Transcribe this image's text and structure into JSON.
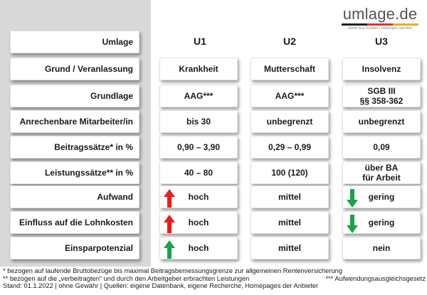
{
  "logo": {
    "text": "umlage.de",
    "tagline": "damit aus Kosten Leistungen werden",
    "bar_colors": [
      "#222222",
      "#e03030",
      "#e8b400"
    ]
  },
  "columns": [
    "U1",
    "U2",
    "U3"
  ],
  "rows": [
    {
      "label": "Umlage",
      "cells": null
    },
    {
      "label": "Grund / Veranlassung",
      "cells": [
        {
          "text": "Krankheit"
        },
        {
          "text": "Mutterschaft"
        },
        {
          "text": "Insolvenz"
        }
      ]
    },
    {
      "label": "Grundlage",
      "cells": [
        {
          "text": "AAG***"
        },
        {
          "text": "AAG***"
        },
        {
          "text": "SGB III\n§§ 358-362"
        }
      ]
    },
    {
      "label": "Anrechenbare Mitarbeiter/in",
      "cells": [
        {
          "text": "bis 30"
        },
        {
          "text": "unbegrenzt"
        },
        {
          "text": "unbegrenzt"
        }
      ]
    },
    {
      "label": "Beitragssätze* in %",
      "cells": [
        {
          "text": "0,90 – 3,90"
        },
        {
          "text": "0,29 – 0,99"
        },
        {
          "text": "0,09"
        }
      ]
    },
    {
      "label": "Leistungssätze** in %",
      "cells": [
        {
          "text": "40 – 80"
        },
        {
          "text": "100 (120)"
        },
        {
          "text": "über BA\nfür Arbeit"
        }
      ]
    },
    {
      "label": "Aufwand",
      "cells": [
        {
          "text": "hoch",
          "arrow": "up-red"
        },
        {
          "text": "mittel"
        },
        {
          "text": "gering",
          "arrow": "down-green"
        }
      ]
    },
    {
      "label": "Einfluss auf die Lohnkosten",
      "cells": [
        {
          "text": "hoch",
          "arrow": "up-red"
        },
        {
          "text": "mittel"
        },
        {
          "text": "gering",
          "arrow": "down-green"
        }
      ]
    },
    {
      "label": "Einsparpotenzial",
      "cells": [
        {
          "text": "hoch",
          "arrow": "up-green"
        },
        {
          "text": "mittel"
        },
        {
          "text": "nein"
        }
      ]
    }
  ],
  "arrow_colors": {
    "red": "#ee1c1c",
    "green": "#1aa34a"
  },
  "footer": {
    "note1": "* bezogen auf laufende Bruttobezüge bis maximal Beitragsbemessungsgrenze zur allgemeinen Rentenversicherung",
    "note2": "** bezogen auf die „verbeitragten“ und durch den Arbeitgeber erbrachten Leistungen",
    "note3": "*** Aufwendungsausgleichsgesetz",
    "note4": "Stand: 01.1.2022 | ohne Gewähr | Quellen: eigene Datenbank, eigene Recherche, Homepages der Anbieter"
  }
}
